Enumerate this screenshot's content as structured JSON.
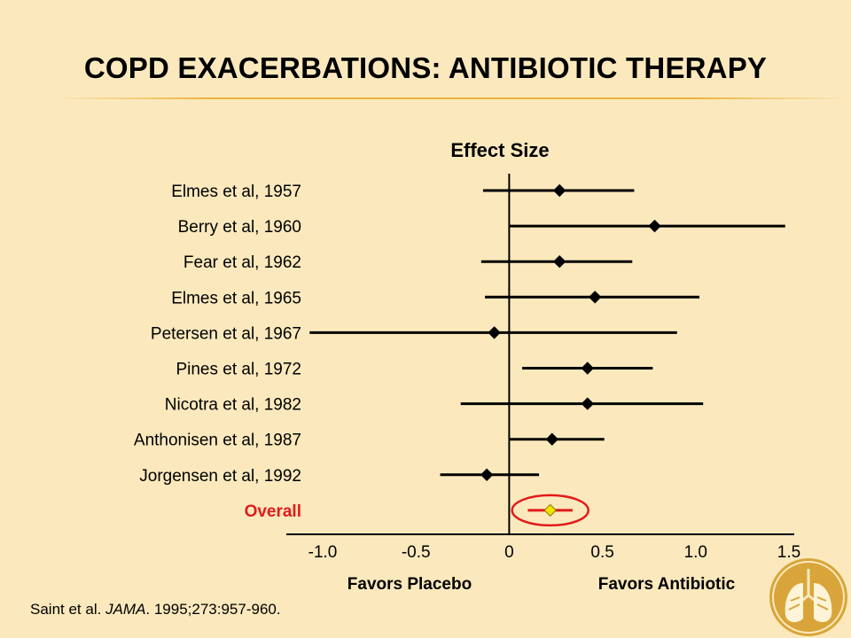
{
  "slide": {
    "title": "COPD EXACERBATIONS: ANTIBIOTIC THERAPY",
    "citation_author": "Saint et al. ",
    "citation_journal": "JAMA",
    "citation_rest": ". 1995;273:957-960."
  },
  "colors": {
    "background": "#fbe9bd",
    "marker": "#000000",
    "overall": "#e11b1b",
    "overall_marker": "#f2e400",
    "accent_rule": "#ecb03c"
  },
  "chart_data": {
    "type": "forest",
    "title": "Effect Size",
    "xlim": [
      -1.0,
      1.5
    ],
    "ticks": [
      "-1.0",
      "-0.5",
      "0",
      "0.5",
      "1.0",
      "1.5"
    ],
    "tick_values": [
      -1.0,
      -0.5,
      0,
      0.5,
      1.0,
      1.5
    ],
    "favors_left": "Favors Placebo",
    "favors_right": "Favors Antibiotic",
    "reference_line": 0,
    "studies": [
      {
        "label": "Elmes et al, 1957",
        "estimate": 0.27,
        "lower": -0.14,
        "upper": 0.67
      },
      {
        "label": "Berry et al, 1960",
        "estimate": 0.78,
        "lower": 0.0,
        "upper": 1.48
      },
      {
        "label": "Fear et al, 1962",
        "estimate": 0.27,
        "lower": -0.15,
        "upper": 0.66
      },
      {
        "label": "Elmes et al, 1965",
        "estimate": 0.46,
        "lower": -0.13,
        "upper": 1.02
      },
      {
        "label": "Petersen et al, 1967",
        "estimate": -0.08,
        "lower": -1.07,
        "upper": 0.9
      },
      {
        "label": "Pines et al, 1972",
        "estimate": 0.42,
        "lower": 0.07,
        "upper": 0.77
      },
      {
        "label": "Nicotra et al, 1982",
        "estimate": 0.42,
        "lower": -0.26,
        "upper": 1.04
      },
      {
        "label": "Anthonisen et al, 1987",
        "estimate": 0.23,
        "lower": 0.0,
        "upper": 0.51
      },
      {
        "label": "Jorgensen et al, 1992",
        "estimate": -0.12,
        "lower": -0.37,
        "upper": 0.16
      }
    ],
    "overall": {
      "label": "Overall",
      "estimate": 0.22,
      "lower": 0.1,
      "upper": 0.34
    }
  }
}
